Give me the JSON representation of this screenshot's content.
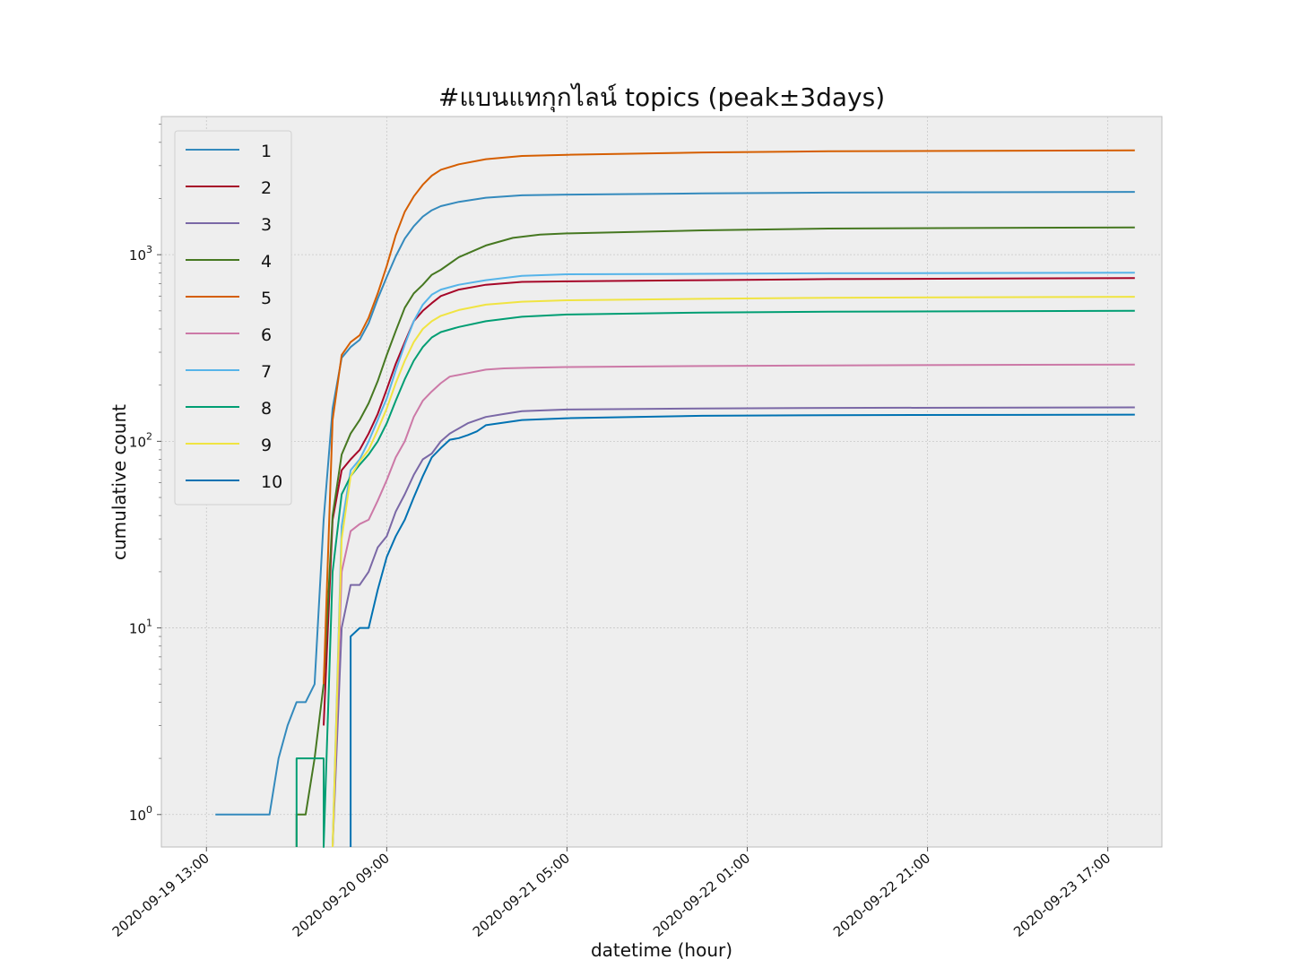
{
  "chart_data": {
    "type": "line",
    "title": "#แบนแทกุกไลน์ topics (peak±3days)",
    "xlabel": "datetime (hour)",
    "ylabel": "cumulative count",
    "yscale": "log",
    "ylim": [
      0.67,
      5500
    ],
    "xlim": [
      "2020-09-19 08:00",
      "2020-09-23 23:00"
    ],
    "grid": true,
    "legend_position": "top-left",
    "x_ticks": [
      "2020-09-19 13:00",
      "2020-09-20 09:00",
      "2020-09-21 05:00",
      "2020-09-22 01:00",
      "2020-09-22 21:00",
      "2020-09-23 17:00"
    ],
    "y_ticks": [
      {
        "value": 1,
        "base": "10",
        "exp": "0"
      },
      {
        "value": 10,
        "base": "10",
        "exp": "1"
      },
      {
        "value": 100,
        "base": "10",
        "exp": "2"
      },
      {
        "value": 1000,
        "base": "10",
        "exp": "3"
      }
    ],
    "series": [
      {
        "name": "1",
        "color": "#348ABD",
        "points": [
          [
            "2020-09-19 14:00",
            1
          ],
          [
            "2020-09-19 20:00",
            1
          ],
          [
            "2020-09-19 21:00",
            2
          ],
          [
            "2020-09-19 22:00",
            3
          ],
          [
            "2020-09-19 23:00",
            4
          ],
          [
            "2020-09-20 00:00",
            4
          ],
          [
            "2020-09-20 01:00",
            5
          ],
          [
            "2020-09-20 02:00",
            38
          ],
          [
            "2020-09-20 03:00",
            150
          ],
          [
            "2020-09-20 04:00",
            280
          ],
          [
            "2020-09-20 05:00",
            320
          ],
          [
            "2020-09-20 06:00",
            350
          ],
          [
            "2020-09-20 07:00",
            430
          ],
          [
            "2020-09-20 08:00",
            580
          ],
          [
            "2020-09-20 09:00",
            760
          ],
          [
            "2020-09-20 10:00",
            980
          ],
          [
            "2020-09-20 11:00",
            1220
          ],
          [
            "2020-09-20 12:00",
            1420
          ],
          [
            "2020-09-20 13:00",
            1600
          ],
          [
            "2020-09-20 14:00",
            1730
          ],
          [
            "2020-09-20 15:00",
            1820
          ],
          [
            "2020-09-20 17:00",
            1920
          ],
          [
            "2020-09-20 20:00",
            2020
          ],
          [
            "2020-09-21 00:00",
            2080
          ],
          [
            "2020-09-21 05:00",
            2100
          ],
          [
            "2020-09-21 20:00",
            2130
          ],
          [
            "2020-09-22 10:00",
            2150
          ],
          [
            "2020-09-23 20:00",
            2170
          ]
        ]
      },
      {
        "name": "2",
        "color": "#A60628",
        "points": [
          [
            "2020-09-20 02:00",
            3
          ],
          [
            "2020-09-20 03:00",
            38
          ],
          [
            "2020-09-20 04:00",
            70
          ],
          [
            "2020-09-20 05:00",
            80
          ],
          [
            "2020-09-20 06:00",
            90
          ],
          [
            "2020-09-20 07:00",
            110
          ],
          [
            "2020-09-20 08:00",
            140
          ],
          [
            "2020-09-20 09:00",
            190
          ],
          [
            "2020-09-20 10:00",
            260
          ],
          [
            "2020-09-20 11:00",
            340
          ],
          [
            "2020-09-20 12:00",
            440
          ],
          [
            "2020-09-20 13:00",
            500
          ],
          [
            "2020-09-20 14:00",
            550
          ],
          [
            "2020-09-20 15:00",
            600
          ],
          [
            "2020-09-20 17:00",
            650
          ],
          [
            "2020-09-20 20:00",
            690
          ],
          [
            "2020-09-21 00:00",
            715
          ],
          [
            "2020-09-21 05:00",
            720
          ],
          [
            "2020-09-21 20:00",
            730
          ],
          [
            "2020-09-22 10:00",
            740
          ],
          [
            "2020-09-23 20:00",
            750
          ]
        ]
      },
      {
        "name": "3",
        "color": "#7A68A6",
        "points": [
          [
            "2020-09-20 03:00",
            0.67
          ],
          [
            "2020-09-20 04:00",
            10
          ],
          [
            "2020-09-20 05:00",
            17
          ],
          [
            "2020-09-20 06:00",
            17
          ],
          [
            "2020-09-20 07:00",
            20
          ],
          [
            "2020-09-20 08:00",
            27
          ],
          [
            "2020-09-20 09:00",
            31
          ],
          [
            "2020-09-20 10:00",
            42
          ],
          [
            "2020-09-20 11:00",
            52
          ],
          [
            "2020-09-20 12:00",
            66
          ],
          [
            "2020-09-20 13:00",
            80
          ],
          [
            "2020-09-20 14:00",
            86
          ],
          [
            "2020-09-20 15:00",
            100
          ],
          [
            "2020-09-20 16:00",
            110
          ],
          [
            "2020-09-20 18:00",
            125
          ],
          [
            "2020-09-20 20:00",
            135
          ],
          [
            "2020-09-20 22:00",
            140
          ],
          [
            "2020-09-21 00:00",
            145
          ],
          [
            "2020-09-21 05:00",
            148
          ],
          [
            "2020-09-21 20:00",
            150
          ],
          [
            "2020-09-22 10:00",
            151
          ],
          [
            "2020-09-23 20:00",
            152
          ]
        ]
      },
      {
        "name": "4",
        "color": "#467821",
        "points": [
          [
            "2020-09-19 23:00",
            0.67
          ],
          [
            "2020-09-19 23:00",
            1
          ],
          [
            "2020-09-20 00:00",
            1
          ],
          [
            "2020-09-20 01:00",
            2
          ],
          [
            "2020-09-20 02:00",
            5
          ],
          [
            "2020-09-20 03:00",
            40
          ],
          [
            "2020-09-20 04:00",
            85
          ],
          [
            "2020-09-20 05:00",
            110
          ],
          [
            "2020-09-20 06:00",
            130
          ],
          [
            "2020-09-20 07:00",
            160
          ],
          [
            "2020-09-20 08:00",
            210
          ],
          [
            "2020-09-20 09:00",
            290
          ],
          [
            "2020-09-20 10:00",
            390
          ],
          [
            "2020-09-20 11:00",
            520
          ],
          [
            "2020-09-20 12:00",
            620
          ],
          [
            "2020-09-20 13:00",
            690
          ],
          [
            "2020-09-20 14:00",
            780
          ],
          [
            "2020-09-20 15:00",
            830
          ],
          [
            "2020-09-20 17:00",
            970
          ],
          [
            "2020-09-20 20:00",
            1120
          ],
          [
            "2020-09-20 23:00",
            1230
          ],
          [
            "2020-09-21 02:00",
            1280
          ],
          [
            "2020-09-21 05:00",
            1300
          ],
          [
            "2020-09-21 20:00",
            1350
          ],
          [
            "2020-09-22 10:00",
            1380
          ],
          [
            "2020-09-23 20:00",
            1400
          ]
        ]
      },
      {
        "name": "5",
        "color": "#D55E00",
        "points": [
          [
            "2020-09-20 02:00",
            5
          ],
          [
            "2020-09-20 03:00",
            130
          ],
          [
            "2020-09-20 04:00",
            290
          ],
          [
            "2020-09-20 05:00",
            340
          ],
          [
            "2020-09-20 06:00",
            370
          ],
          [
            "2020-09-20 07:00",
            460
          ],
          [
            "2020-09-20 08:00",
            620
          ],
          [
            "2020-09-20 09:00",
            870
          ],
          [
            "2020-09-20 10:00",
            1270
          ],
          [
            "2020-09-20 11:00",
            1700
          ],
          [
            "2020-09-20 12:00",
            2050
          ],
          [
            "2020-09-20 13:00",
            2370
          ],
          [
            "2020-09-20 14:00",
            2650
          ],
          [
            "2020-09-20 15:00",
            2850
          ],
          [
            "2020-09-20 17:00",
            3050
          ],
          [
            "2020-09-20 20:00",
            3250
          ],
          [
            "2020-09-21 00:00",
            3380
          ],
          [
            "2020-09-21 05:00",
            3430
          ],
          [
            "2020-09-21 20:00",
            3530
          ],
          [
            "2020-09-22 10:00",
            3580
          ],
          [
            "2020-09-23 20:00",
            3620
          ]
        ]
      },
      {
        "name": "6",
        "color": "#CC79A7",
        "points": [
          [
            "2020-09-20 03:00",
            0.67
          ],
          [
            "2020-09-20 04:00",
            20
          ],
          [
            "2020-09-20 05:00",
            33
          ],
          [
            "2020-09-20 06:00",
            36
          ],
          [
            "2020-09-20 07:00",
            38
          ],
          [
            "2020-09-20 08:00",
            48
          ],
          [
            "2020-09-20 09:00",
            62
          ],
          [
            "2020-09-20 10:00",
            82
          ],
          [
            "2020-09-20 11:00",
            100
          ],
          [
            "2020-09-20 12:00",
            135
          ],
          [
            "2020-09-20 13:00",
            165
          ],
          [
            "2020-09-20 14:00",
            185
          ],
          [
            "2020-09-20 15:00",
            205
          ],
          [
            "2020-09-20 16:00",
            222
          ],
          [
            "2020-09-20 18:00",
            232
          ],
          [
            "2020-09-20 20:00",
            242
          ],
          [
            "2020-09-20 22:00",
            246
          ],
          [
            "2020-09-21 01:00",
            248
          ],
          [
            "2020-09-21 05:00",
            250
          ],
          [
            "2020-09-21 20:00",
            253
          ],
          [
            "2020-09-22 10:00",
            255
          ],
          [
            "2020-09-23 20:00",
            258
          ]
        ]
      },
      {
        "name": "7",
        "color": "#56B4E9",
        "points": [
          [
            "2020-09-20 03:00",
            0.67
          ],
          [
            "2020-09-20 04:00",
            35
          ],
          [
            "2020-09-20 05:00",
            70
          ],
          [
            "2020-09-20 06:00",
            80
          ],
          [
            "2020-09-20 07:00",
            100
          ],
          [
            "2020-09-20 08:00",
            130
          ],
          [
            "2020-09-20 09:00",
            170
          ],
          [
            "2020-09-20 10:00",
            240
          ],
          [
            "2020-09-20 11:00",
            330
          ],
          [
            "2020-09-20 12:00",
            440
          ],
          [
            "2020-09-20 13:00",
            540
          ],
          [
            "2020-09-20 14:00",
            610
          ],
          [
            "2020-09-20 15:00",
            650
          ],
          [
            "2020-09-20 17:00",
            690
          ],
          [
            "2020-09-20 20:00",
            730
          ],
          [
            "2020-09-21 00:00",
            770
          ],
          [
            "2020-09-21 05:00",
            785
          ],
          [
            "2020-09-21 20:00",
            790
          ],
          [
            "2020-09-22 10:00",
            795
          ],
          [
            "2020-09-23 20:00",
            800
          ]
        ]
      },
      {
        "name": "8",
        "color": "#009E73",
        "points": [
          [
            "2020-09-19 23:00",
            0.67
          ],
          [
            "2020-09-19 23:00",
            2
          ],
          [
            "2020-09-20 02:00",
            2
          ],
          [
            "2020-09-20 02:00",
            0.67
          ],
          [
            "2020-09-20 03:00",
            20
          ],
          [
            "2020-09-20 04:00",
            52
          ],
          [
            "2020-09-20 05:00",
            65
          ],
          [
            "2020-09-20 06:00",
            75
          ],
          [
            "2020-09-20 07:00",
            85
          ],
          [
            "2020-09-20 08:00",
            100
          ],
          [
            "2020-09-20 09:00",
            125
          ],
          [
            "2020-09-20 10:00",
            165
          ],
          [
            "2020-09-20 11:00",
            215
          ],
          [
            "2020-09-20 12:00",
            270
          ],
          [
            "2020-09-20 13:00",
            320
          ],
          [
            "2020-09-20 14:00",
            360
          ],
          [
            "2020-09-20 15:00",
            385
          ],
          [
            "2020-09-20 17:00",
            410
          ],
          [
            "2020-09-20 20:00",
            440
          ],
          [
            "2020-09-21 00:00",
            465
          ],
          [
            "2020-09-21 05:00",
            478
          ],
          [
            "2020-09-21 20:00",
            490
          ],
          [
            "2020-09-22 10:00",
            495
          ],
          [
            "2020-09-23 20:00",
            500
          ]
        ]
      },
      {
        "name": "9",
        "color": "#F0E442",
        "points": [
          [
            "2020-09-20 03:00",
            0.67
          ],
          [
            "2020-09-20 04:00",
            30
          ],
          [
            "2020-09-20 05:00",
            65
          ],
          [
            "2020-09-20 06:00",
            78
          ],
          [
            "2020-09-20 07:00",
            90
          ],
          [
            "2020-09-20 08:00",
            115
          ],
          [
            "2020-09-20 09:00",
            150
          ],
          [
            "2020-09-20 10:00",
            205
          ],
          [
            "2020-09-20 11:00",
            270
          ],
          [
            "2020-09-20 12:00",
            340
          ],
          [
            "2020-09-20 13:00",
            400
          ],
          [
            "2020-09-20 14:00",
            440
          ],
          [
            "2020-09-20 15:00",
            470
          ],
          [
            "2020-09-20 17:00",
            505
          ],
          [
            "2020-09-20 20:00",
            540
          ],
          [
            "2020-09-21 00:00",
            560
          ],
          [
            "2020-09-21 05:00",
            570
          ],
          [
            "2020-09-21 20:00",
            580
          ],
          [
            "2020-09-22 10:00",
            588
          ],
          [
            "2020-09-23 20:00",
            595
          ]
        ]
      },
      {
        "name": "10",
        "color": "#0072B2",
        "points": [
          [
            "2020-09-20 05:00",
            0.67
          ],
          [
            "2020-09-20 05:00",
            9
          ],
          [
            "2020-09-20 06:00",
            10
          ],
          [
            "2020-09-20 07:00",
            10
          ],
          [
            "2020-09-20 08:00",
            16
          ],
          [
            "2020-09-20 09:00",
            24
          ],
          [
            "2020-09-20 10:00",
            31
          ],
          [
            "2020-09-20 11:00",
            38
          ],
          [
            "2020-09-20 12:00",
            50
          ],
          [
            "2020-09-20 13:00",
            65
          ],
          [
            "2020-09-20 14:00",
            82
          ],
          [
            "2020-09-20 15:00",
            92
          ],
          [
            "2020-09-20 16:00",
            102
          ],
          [
            "2020-09-20 17:00",
            104
          ],
          [
            "2020-09-20 18:00",
            108
          ],
          [
            "2020-09-20 19:00",
            113
          ],
          [
            "2020-09-20 20:00",
            122
          ],
          [
            "2020-09-20 22:00",
            126
          ],
          [
            "2020-09-21 00:00",
            130
          ],
          [
            "2020-09-21 05:00",
            133
          ],
          [
            "2020-09-21 20:00",
            137
          ],
          [
            "2020-09-22 10:00",
            138
          ],
          [
            "2020-09-23 20:00",
            139
          ]
        ]
      }
    ]
  }
}
